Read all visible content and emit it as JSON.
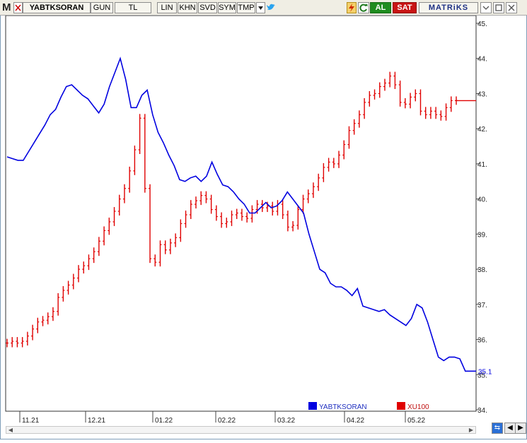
{
  "toolbar": {
    "logo": "M",
    "symbol": "YABTKSORAN",
    "period": "GUN",
    "currency": "TL",
    "scale": "LIN",
    "khn": "KHN",
    "svd": "SVD",
    "sym": "SYM",
    "tmp": "TMP",
    "dropdown_icon": "dropdown-arrow-icon",
    "twitter_icon": "bird-icon",
    "flash_icon": "lightning-icon",
    "refresh_icon": "refresh-icon",
    "al_label": "AL",
    "sat_label": "SAT",
    "brand": "MATRiKS",
    "window_controls": [
      "minimize-icon",
      "maximize-icon",
      "close-icon"
    ]
  },
  "colors": {
    "yabtksoran": "#0000e0",
    "xu100": "#e00000",
    "al": "#1f8c1f",
    "sat": "#c81414"
  },
  "chart_data": {
    "type": "line",
    "x_labels": [
      "11.21",
      "12.21",
      "01.22",
      "02.22",
      "03.22",
      "04.22",
      "05.22"
    ],
    "y_ticks": [
      34,
      35,
      36,
      37,
      38,
      39,
      40,
      41,
      42,
      43,
      44,
      45
    ],
    "ylim": [
      34,
      45
    ],
    "last_value_label": "35.1",
    "legend": [
      {
        "name": "YABTKSORAN",
        "color": "#0000e0"
      },
      {
        "name": "XU100",
        "color": "#e00000"
      }
    ],
    "series": [
      {
        "name": "YABTKSORAN",
        "type": "line",
        "values": [
          41.2,
          41.15,
          41.1,
          41.1,
          41.35,
          41.6,
          41.85,
          42.1,
          42.4,
          42.55,
          42.9,
          43.2,
          43.25,
          43.1,
          42.95,
          42.85,
          42.65,
          42.45,
          42.7,
          43.2,
          43.6,
          44.0,
          43.4,
          42.6,
          42.6,
          42.95,
          43.1,
          42.4,
          41.9,
          41.6,
          41.25,
          40.95,
          40.55,
          40.5,
          40.6,
          40.65,
          40.5,
          40.65,
          41.05,
          40.7,
          40.4,
          40.35,
          40.2,
          40.0,
          39.85,
          39.6,
          39.6,
          39.75,
          39.9,
          39.75,
          39.8,
          39.95,
          40.2,
          40.0,
          39.8,
          39.6,
          39.0,
          38.5,
          38.0,
          37.9,
          37.6,
          37.5,
          37.5,
          37.4,
          37.25,
          37.45,
          36.95,
          36.9,
          36.85,
          36.8,
          36.85,
          36.7,
          36.6,
          36.5,
          36.4,
          36.6,
          37.0,
          36.9,
          36.5,
          36.0,
          35.5,
          35.4,
          35.5,
          35.5,
          35.45,
          35.1,
          35.1,
          35.1
        ]
      },
      {
        "name": "XU100",
        "type": "ohlc",
        "values": [
          35.9,
          35.95,
          35.9,
          35.95,
          36.1,
          36.3,
          36.5,
          36.55,
          36.65,
          36.8,
          37.2,
          37.4,
          37.55,
          37.75,
          38.0,
          38.1,
          38.3,
          38.5,
          38.8,
          39.1,
          39.35,
          39.65,
          40.0,
          40.3,
          40.8,
          41.4,
          42.3,
          40.3,
          38.3,
          38.2,
          38.7,
          38.55,
          38.75,
          38.9,
          39.3,
          39.55,
          39.85,
          39.95,
          40.1,
          40.0,
          39.7,
          39.5,
          39.3,
          39.35,
          39.55,
          39.6,
          39.5,
          39.45,
          39.7,
          39.85,
          39.75,
          39.8,
          39.65,
          39.85,
          39.55,
          39.2,
          39.25,
          39.7,
          40.0,
          40.15,
          40.35,
          40.6,
          40.9,
          41.05,
          41.0,
          41.25,
          41.55,
          41.95,
          42.15,
          42.4,
          42.75,
          42.95,
          43.0,
          43.2,
          43.3,
          43.5,
          43.25,
          42.75,
          42.7,
          42.9,
          43.0,
          42.5,
          42.4,
          42.5,
          42.4,
          42.35,
          42.6,
          42.8,
          42.8
        ]
      }
    ]
  }
}
